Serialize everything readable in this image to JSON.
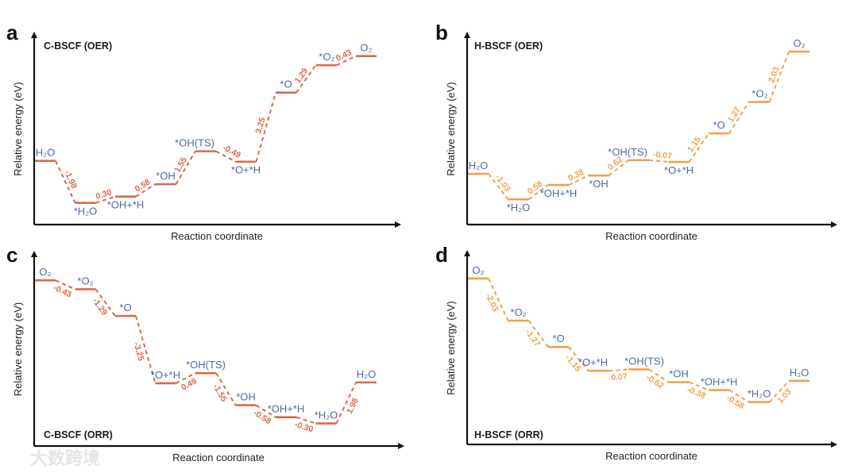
{
  "chart_data": [
    {
      "type": "line",
      "panel": "a",
      "title": "C-BSCF (OER)",
      "xlabel": "Reaction coordinate",
      "ylabel": "Relative energy (eV)",
      "color": "#d9694a",
      "species": [
        "H₂O",
        "*H₂O",
        "*OH+*H",
        "*OH",
        "*OH(TS)",
        "*O+*H",
        "*O",
        "*O₂",
        "O₂"
      ],
      "label_pos": [
        "above",
        "below",
        "below",
        "above",
        "above",
        "below",
        "above",
        "above",
        "above"
      ],
      "deltas": [
        "-1.98",
        "0.30",
        "0.58",
        "1.55",
        "-0.49",
        "3.25",
        "1.29",
        "0.43"
      ],
      "energies": [
        0,
        -1.98,
        -1.68,
        -1.1,
        0.45,
        -0.04,
        3.21,
        4.5,
        4.93
      ],
      "ylim": [
        -3.0,
        6.0
      ],
      "delta_side": "upper"
    },
    {
      "type": "line",
      "panel": "b",
      "title": "H-BSCF (OER)",
      "xlabel": "Reaction coordinate",
      "ylabel": "Relative energy (eV)",
      "color": "#f0a04b",
      "species": [
        "H₂O",
        "*H₂O",
        "*OH+*H",
        "*OH",
        "*OH(TS)",
        "*O+*H",
        "*O",
        "*O₂",
        "O₂"
      ],
      "label_pos": [
        "above",
        "below",
        "below",
        "below",
        "above",
        "below",
        "above",
        "above",
        "above"
      ],
      "deltas": [
        "-1.03",
        "0.58",
        "0.38",
        "0.62",
        "-0.07",
        "1.15",
        "1.27",
        "2.03"
      ],
      "energies": [
        0,
        -1.03,
        -0.45,
        -0.07,
        0.55,
        0.48,
        1.63,
        2.9,
        4.93
      ],
      "ylim": [
        -2.05,
        5.67
      ],
      "delta_side": "upper"
    },
    {
      "type": "line",
      "panel": "c",
      "title": "C-BSCF (ORR)",
      "xlabel": "Reaction coordinate",
      "ylabel": "Relative energy (eV)",
      "color": "#d9694a",
      "species": [
        "O₂",
        "*O₂",
        "*O",
        "*O+*H",
        "*OH(TS)",
        "*OH",
        "*OH+*H",
        "*H₂O",
        "H₂O"
      ],
      "label_pos": [
        "above",
        "above",
        "above",
        "above",
        "above",
        "above",
        "above",
        "above",
        "above"
      ],
      "deltas": [
        "-0.43",
        "-1.29",
        "-3.25",
        "0.49",
        "-1.55",
        "-0.58",
        "-0.30",
        "1.98"
      ],
      "energies": [
        0,
        -0.43,
        -1.72,
        -4.97,
        -4.48,
        -6.03,
        -6.61,
        -6.91,
        -4.93
      ],
      "ylim": [
        -8.0,
        1.35
      ],
      "delta_side": "lower"
    },
    {
      "type": "line",
      "panel": "d",
      "title": "H-BSCF (ORR)",
      "xlabel": "Reaction coordinate",
      "ylabel": "Relative energy (eV)",
      "color": "#f0a04b",
      "species": [
        "O₂",
        "*O₂",
        "*O",
        "*O+*H",
        "*OH(TS)",
        "*OH",
        "*OH+*H",
        "*H₂O",
        "H₂O"
      ],
      "label_pos": [
        "above",
        "above",
        "above",
        "above",
        "above",
        "above",
        "above",
        "above",
        "above"
      ],
      "deltas": [
        "-2.03",
        "-1.27",
        "-1.15",
        "0.07",
        "-0.62",
        "-0.38",
        "-0.58",
        "1.03"
      ],
      "energies": [
        0,
        -2.03,
        -3.3,
        -4.45,
        -4.38,
        -5.0,
        -5.38,
        -5.96,
        -4.93
      ],
      "ylim": [
        -8.0,
        1.3
      ],
      "delta_side": "lower"
    }
  ],
  "colors": {
    "species_label": "#4d6b9a",
    "axis": "#111111"
  },
  "watermark": "大数跨境"
}
